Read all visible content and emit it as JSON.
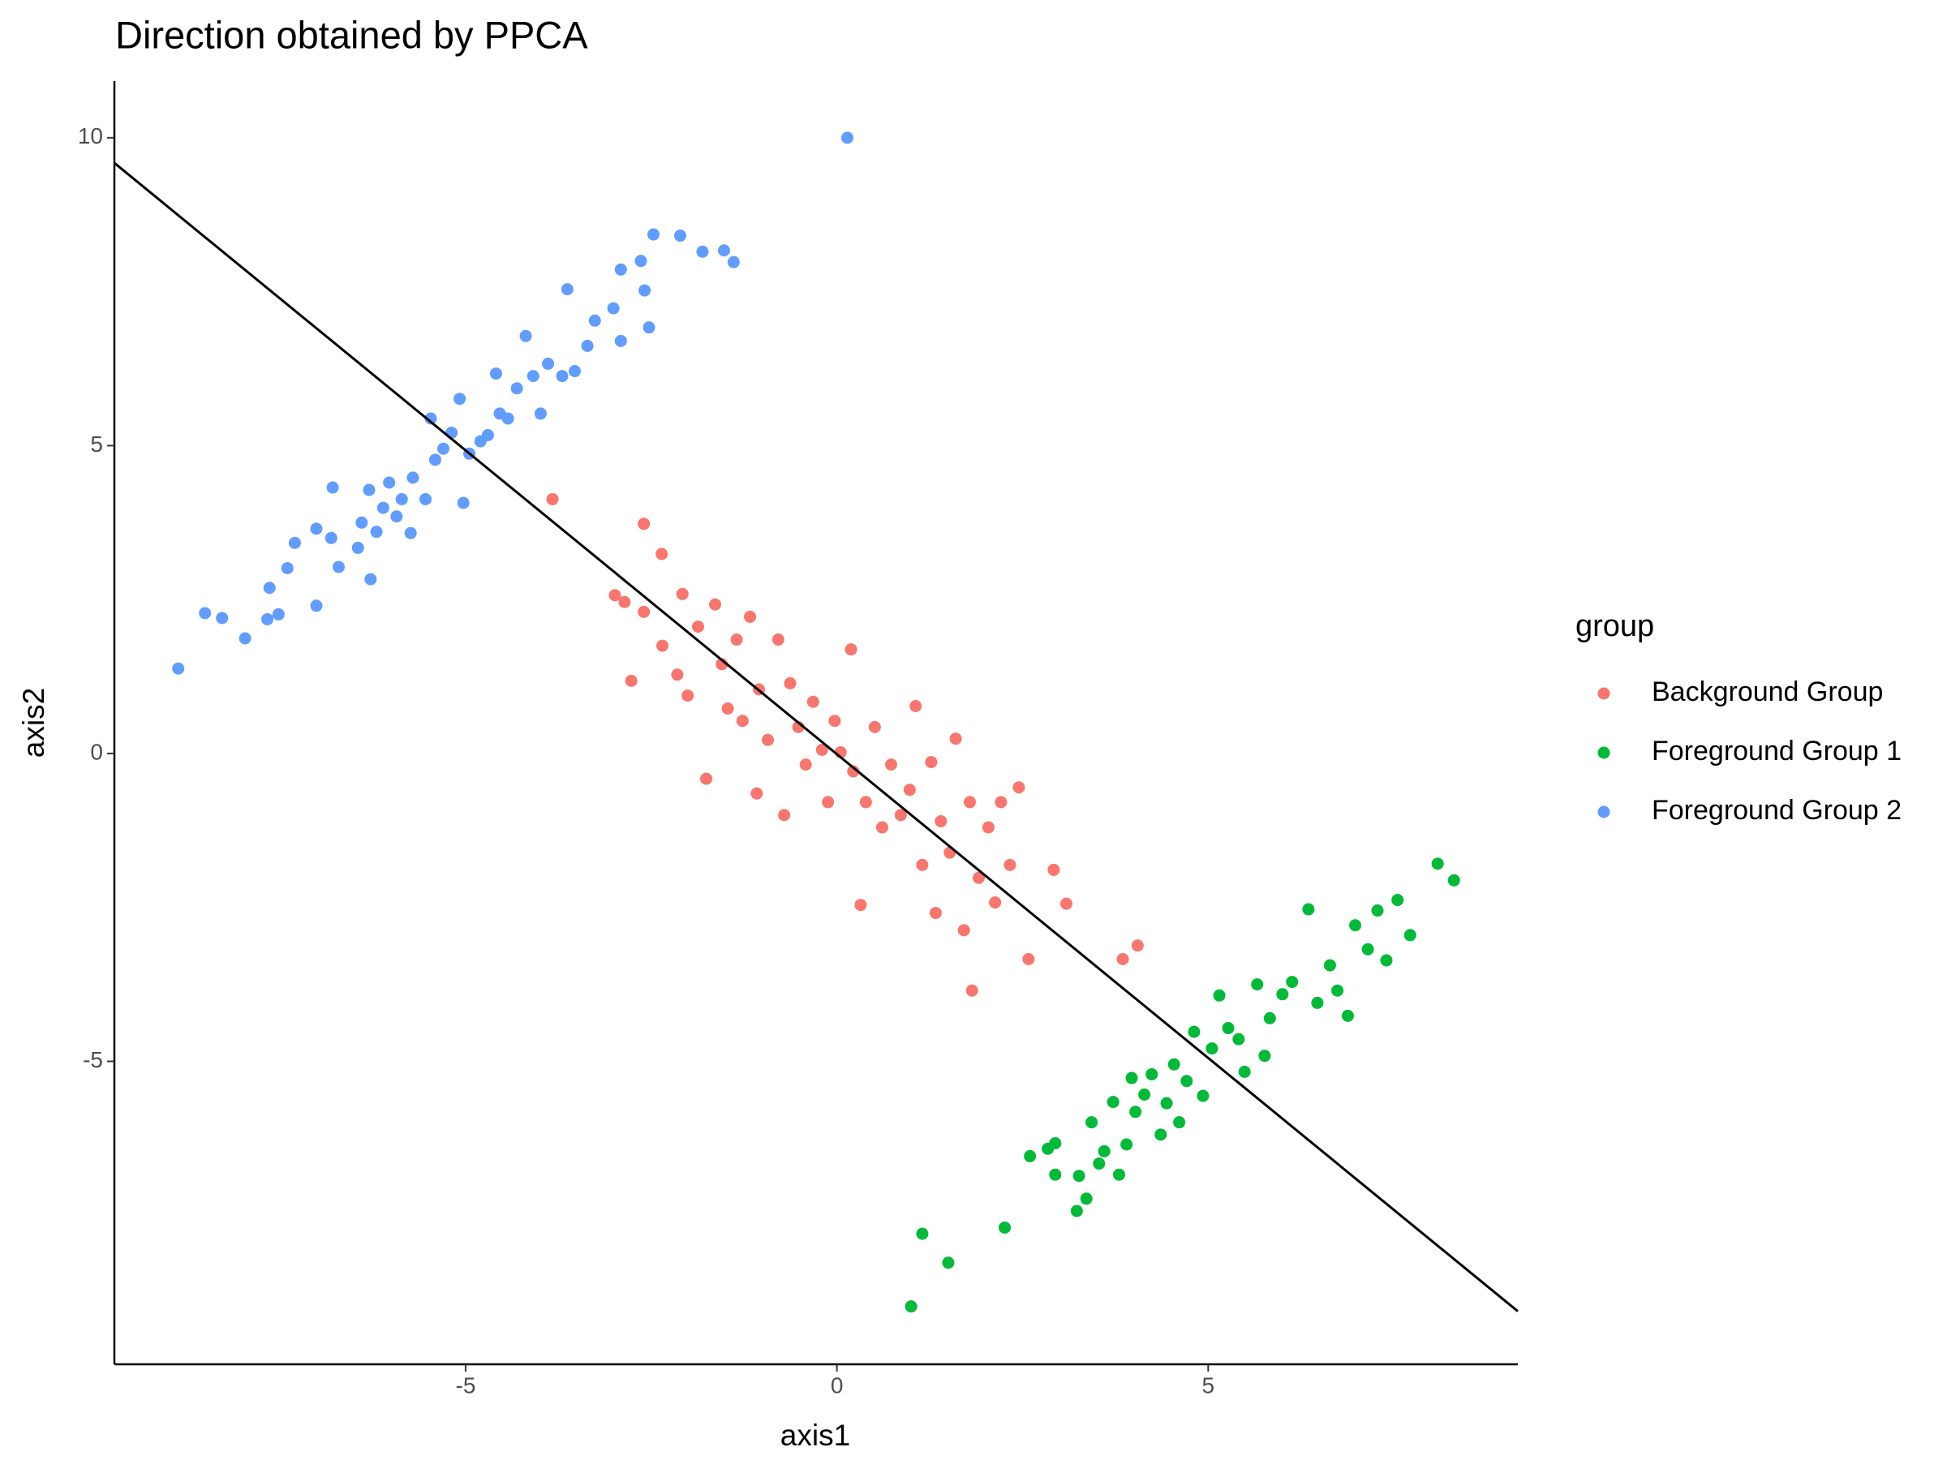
{
  "chart_data": {
    "type": "scatter",
    "title": "Direction obtained by PPCA",
    "x_label": "axis1",
    "y_label": "axis2",
    "legend_title": "group",
    "legend_position": "right",
    "xlim": [
      -9.73,
      9.17
    ],
    "ylim": [
      -9.92,
      10.92
    ],
    "xticks": [
      -5,
      0,
      5
    ],
    "yticks": [
      -5,
      0,
      5,
      10
    ],
    "grid": false,
    "reference_line": {
      "color": "#000000",
      "x": [
        -9.73,
        9.17
      ],
      "y": [
        9.59,
        -9.06
      ]
    },
    "series": [
      {
        "name": "Background Group",
        "color": "#F8766D",
        "x": [
          -3.83,
          -2.6,
          -2.36,
          -2.99,
          -2.86,
          -2.77,
          -2.6,
          -2.35,
          -2.08,
          -2.15,
          -2.01,
          -1.87,
          -1.76,
          -1.64,
          -1.55,
          -1.47,
          -1.35,
          -1.27,
          -1.17,
          -1.08,
          -1.05,
          -0.93,
          -0.79,
          -0.71,
          -0.63,
          -0.52,
          -0.42,
          -0.32,
          -0.2,
          -0.12,
          -0.03,
          0.05,
          0.19,
          0.22,
          0.32,
          0.39,
          0.51,
          0.61,
          0.73,
          0.86,
          0.98,
          1.06,
          1.15,
          1.27,
          1.33,
          1.4,
          1.52,
          1.6,
          1.71,
          1.79,
          1.82,
          1.91,
          2.04,
          2.13,
          2.21,
          2.33,
          2.45,
          2.58,
          2.92,
          3.09,
          3.85,
          4.05
        ],
        "y": [
          4.13,
          3.73,
          3.24,
          2.57,
          2.46,
          1.18,
          2.3,
          1.75,
          2.59,
          1.28,
          0.94,
          2.06,
          -0.41,
          2.42,
          1.45,
          0.73,
          1.85,
          0.53,
          2.22,
          -0.65,
          1.04,
          0.22,
          1.85,
          -1.0,
          1.14,
          0.43,
          -0.18,
          0.84,
          0.06,
          -0.79,
          0.53,
          0.02,
          1.69,
          -0.29,
          -2.46,
          -0.79,
          0.43,
          -1.2,
          -0.18,
          -1.0,
          -0.59,
          0.77,
          -1.81,
          -0.14,
          -2.59,
          -1.1,
          -1.61,
          0.24,
          -2.87,
          -0.79,
          -3.85,
          -2.02,
          -1.2,
          -2.42,
          -0.79,
          -1.81,
          -0.55,
          -3.34,
          -1.89,
          -2.44,
          -3.34,
          -3.12
        ]
      },
      {
        "name": "Foreground Group 1",
        "color": "#00BA38",
        "x": [
          1.0,
          1.15,
          1.5,
          2.26,
          2.6,
          2.84,
          2.94,
          2.94,
          3.23,
          3.26,
          3.36,
          3.43,
          3.53,
          3.6,
          3.72,
          3.8,
          3.9,
          3.97,
          4.02,
          4.14,
          4.24,
          4.36,
          4.44,
          4.54,
          4.61,
          4.71,
          4.81,
          4.93,
          5.05,
          5.15,
          5.27,
          5.41,
          5.49,
          5.66,
          5.76,
          5.83,
          6.0,
          6.13,
          6.35,
          6.47,
          6.64,
          6.74,
          6.88,
          6.98,
          7.15,
          7.28,
          7.4,
          7.55,
          7.72,
          8.09,
          8.31
        ],
        "y": [
          -8.98,
          -7.8,
          -8.27,
          -7.7,
          -6.54,
          -6.42,
          -6.33,
          -6.84,
          -7.43,
          -6.86,
          -7.23,
          -5.99,
          -6.66,
          -6.46,
          -5.66,
          -6.84,
          -6.35,
          -5.27,
          -5.82,
          -5.54,
          -5.21,
          -6.19,
          -5.68,
          -5.05,
          -5.99,
          -5.32,
          -4.52,
          -5.56,
          -4.79,
          -3.93,
          -4.46,
          -4.64,
          -5.17,
          -3.75,
          -4.91,
          -4.3,
          -3.91,
          -3.71,
          -2.53,
          -4.05,
          -3.44,
          -3.85,
          -4.26,
          -2.79,
          -3.18,
          -2.55,
          -3.36,
          -2.38,
          -2.95,
          -1.79,
          -2.06
        ]
      },
      {
        "name": "Foreground Group 2",
        "color": "#619CFF",
        "x": [
          -8.87,
          -8.51,
          -8.28,
          -7.97,
          -7.67,
          -7.64,
          -7.52,
          -7.4,
          -7.3,
          -7.01,
          -7.01,
          -6.79,
          -6.81,
          -6.71,
          -6.45,
          -6.4,
          -6.3,
          -6.28,
          -6.2,
          -6.11,
          -6.03,
          -5.93,
          -5.86,
          -5.74,
          -5.71,
          -5.54,
          -5.47,
          -5.41,
          -5.3,
          -5.19,
          -5.08,
          -5.03,
          -4.95,
          -4.8,
          -4.7,
          -4.59,
          -4.54,
          -4.43,
          -4.31,
          -4.19,
          -4.09,
          -3.99,
          -3.89,
          -3.7,
          -3.63,
          -3.53,
          -3.36,
          -3.26,
          -3.01,
          -2.91,
          -2.91,
          -2.64,
          -2.59,
          -2.53,
          -2.47,
          -2.11,
          -1.81,
          -1.52,
          -1.39,
          0.14
        ],
        "y": [
          1.38,
          2.28,
          2.2,
          1.87,
          2.18,
          2.69,
          2.26,
          3.01,
          3.42,
          2.4,
          3.65,
          4.32,
          3.5,
          3.03,
          3.34,
          3.75,
          4.28,
          2.83,
          3.6,
          3.99,
          4.4,
          3.85,
          4.13,
          3.58,
          4.48,
          4.13,
          5.44,
          4.77,
          4.95,
          5.21,
          5.76,
          4.07,
          4.87,
          5.07,
          5.17,
          6.17,
          5.52,
          5.44,
          5.93,
          6.78,
          6.13,
          5.52,
          6.33,
          6.13,
          7.54,
          6.21,
          6.62,
          7.03,
          7.23,
          6.7,
          7.86,
          8.0,
          7.52,
          6.92,
          8.43,
          8.41,
          8.15,
          8.17,
          7.98,
          10.0
        ]
      }
    ]
  }
}
